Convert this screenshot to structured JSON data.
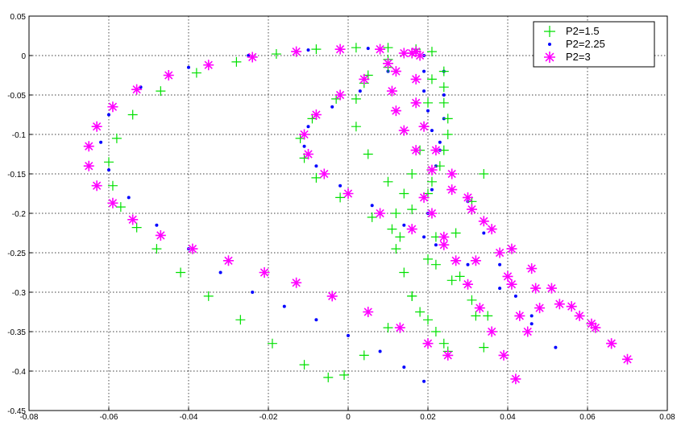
{
  "chart_data": {
    "type": "scatter",
    "title": "",
    "xlabel": "",
    "ylabel": "",
    "xlim": [
      -0.08,
      0.08
    ],
    "ylim": [
      -0.45,
      0.05
    ],
    "xticks": [
      "-0.08",
      "-0.06",
      "-0.04",
      "-0.02",
      "0",
      "0.02",
      "0.04",
      "0.06",
      "0.08"
    ],
    "yticks": [
      "0.05",
      "0",
      "-0.05",
      "-0.1",
      "-0.15",
      "-0.2",
      "-0.25",
      "-0.3",
      "-0.35",
      "-0.4",
      "-0.45"
    ],
    "grid": true,
    "legend_position": "top-right",
    "colors": {
      "p15": "#00e000",
      "p225": "#0000ff",
      "p3": "#ff00ff"
    },
    "series": [
      {
        "name": "P2=1.5",
        "marker": "plus",
        "color": "#00e000",
        "curves": [
          {
            "x": [
              0.017,
              0.01,
              0.002,
              -0.008,
              -0.018,
              -0.028,
              -0.038,
              -0.047,
              -0.054,
              -0.058,
              -0.06,
              -0.059,
              -0.057,
              -0.053,
              -0.048,
              -0.042,
              -0.035,
              -0.027,
              -0.019,
              -0.011,
              -0.005,
              -0.001,
              0.004,
              0.01,
              0.016,
              0.022,
              0.027,
              0.031,
              0.034
            ],
            "y": [
              0.008,
              0.01,
              0.01,
              0.008,
              0.002,
              -0.008,
              -0.022,
              -0.045,
              -0.075,
              -0.105,
              -0.135,
              -0.165,
              -0.192,
              -0.218,
              -0.245,
              -0.275,
              -0.305,
              -0.335,
              -0.365,
              -0.392,
              -0.408,
              -0.405,
              -0.38,
              -0.345,
              -0.305,
              -0.265,
              -0.225,
              -0.185,
              -0.15
            ]
          },
          {
            "x": [
              0.017,
              0.01,
              0.005,
              0.002,
              0.002,
              0.005,
              0.01,
              0.016,
              0.022,
              0.028,
              0.032,
              0.034
            ],
            "y": [
              0.005,
              -0.005,
              -0.025,
              -0.055,
              -0.09,
              -0.125,
              -0.16,
              -0.195,
              -0.23,
              -0.28,
              -0.33,
              -0.37
            ]
          },
          {
            "x": [
              0.017,
              0.01,
              0.004,
              -0.003,
              -0.009,
              -0.012,
              -0.011,
              -0.008,
              -0.002,
              0.006,
              0.013,
              0.02,
              0.026,
              0.031,
              0.035
            ],
            "y": [
              0.005,
              -0.015,
              -0.035,
              -0.055,
              -0.08,
              -0.105,
              -0.13,
              -0.155,
              -0.18,
              -0.205,
              -0.23,
              -0.258,
              -0.285,
              -0.31,
              -0.33
            ]
          },
          {
            "x": [
              0.021,
              0.021,
              0.02,
              0.019,
              0.018,
              0.016,
              0.014,
              0.012,
              0.011,
              0.012,
              0.014,
              0.016,
              0.018,
              0.02,
              0.022,
              0.024,
              0.025
            ],
            "y": [
              0.005,
              -0.03,
              -0.06,
              -0.09,
              -0.12,
              -0.15,
              -0.175,
              -0.2,
              -0.22,
              -0.245,
              -0.275,
              -0.305,
              -0.325,
              -0.335,
              -0.35,
              -0.365,
              -0.375
            ]
          },
          {
            "x": [
              0.024,
              0.024,
              0.024,
              0.025,
              0.025,
              0.024,
              0.023,
              0.021,
              0.02
            ],
            "y": [
              -0.02,
              -0.04,
              -0.06,
              -0.08,
              -0.1,
              -0.12,
              -0.14,
              -0.16,
              -0.175
            ]
          }
        ]
      },
      {
        "name": "P2=2.25",
        "marker": "dot",
        "color": "#0000ff",
        "curves": [
          {
            "x": [
              0.017,
              0.005,
              -0.01,
              -0.025,
              -0.04,
              -0.052,
              -0.06,
              -0.062,
              -0.06,
              -0.055,
              -0.048,
              -0.04,
              -0.032,
              -0.024,
              -0.016,
              -0.008,
              0.0,
              0.008,
              0.014,
              0.019
            ],
            "y": [
              0.007,
              0.009,
              0.007,
              0.0,
              -0.015,
              -0.04,
              -0.075,
              -0.11,
              -0.145,
              -0.18,
              -0.215,
              -0.245,
              -0.275,
              -0.3,
              -0.318,
              -0.335,
              -0.355,
              -0.375,
              -0.395,
              -0.413
            ]
          },
          {
            "x": [
              0.017,
              0.01,
              0.003,
              -0.004,
              -0.01,
              -0.011,
              -0.008,
              -0.002,
              0.006,
              0.014,
              0.022,
              0.03,
              0.038,
              0.046,
              0.052
            ],
            "y": [
              0.004,
              -0.02,
              -0.045,
              -0.065,
              -0.09,
              -0.115,
              -0.14,
              -0.165,
              -0.19,
              -0.215,
              -0.24,
              -0.265,
              -0.295,
              -0.33,
              -0.37
            ]
          },
          {
            "x": [
              0.019,
              0.019,
              0.019,
              0.02,
              0.021,
              0.023,
              0.026,
              0.03,
              0.034,
              0.038,
              0.042,
              0.046
            ],
            "y": [
              0.0,
              -0.02,
              -0.045,
              -0.07,
              -0.095,
              -0.12,
              -0.15,
              -0.185,
              -0.225,
              -0.265,
              -0.305,
              -0.34
            ]
          },
          {
            "x": [
              0.024,
              0.024,
              0.024,
              0.023,
              0.022,
              0.021,
              0.02,
              0.019
            ],
            "y": [
              -0.02,
              -0.05,
              -0.08,
              -0.11,
              -0.14,
              -0.17,
              -0.2,
              -0.23
            ]
          }
        ]
      },
      {
        "name": "P2=3",
        "marker": "star",
        "color": "#ff00ff",
        "curves": [
          {
            "x": [
              0.017,
              0.008,
              -0.002,
              -0.013,
              -0.024,
              -0.035,
              -0.045,
              -0.053,
              -0.059,
              -0.063,
              -0.065,
              -0.065,
              -0.063,
              -0.059,
              -0.054,
              -0.047,
              -0.039,
              -0.03,
              -0.021,
              -0.013,
              -0.004,
              0.005,
              0.013,
              0.02,
              0.025
            ],
            "y": [
              0.005,
              0.008,
              0.008,
              0.005,
              -0.002,
              -0.012,
              -0.025,
              -0.043,
              -0.065,
              -0.09,
              -0.115,
              -0.14,
              -0.165,
              -0.187,
              -0.208,
              -0.228,
              -0.245,
              -0.26,
              -0.275,
              -0.288,
              -0.305,
              -0.325,
              -0.345,
              -0.365,
              -0.38
            ]
          },
          {
            "x": [
              0.016,
              0.01,
              0.004,
              -0.002,
              -0.008,
              -0.011,
              -0.01,
              -0.006,
              0.0,
              0.008,
              0.016,
              0.024,
              0.032,
              0.04,
              0.047,
              0.053,
              0.058,
              0.062,
              0.066,
              0.07
            ],
            "y": [
              0.003,
              -0.01,
              -0.03,
              -0.05,
              -0.075,
              -0.1,
              -0.125,
              -0.15,
              -0.175,
              -0.2,
              -0.22,
              -0.24,
              -0.26,
              -0.28,
              -0.295,
              -0.315,
              -0.33,
              -0.345,
              -0.365,
              -0.385
            ]
          },
          {
            "x": [
              0.014,
              0.012,
              0.011,
              0.012,
              0.014,
              0.017,
              0.021,
              0.026,
              0.031,
              0.036,
              0.041,
              0.046,
              0.051,
              0.056,
              0.061,
              0.066
            ],
            "y": [
              0.003,
              -0.02,
              -0.045,
              -0.07,
              -0.095,
              -0.12,
              -0.145,
              -0.17,
              -0.195,
              -0.22,
              -0.245,
              -0.27,
              -0.295,
              -0.318,
              -0.34,
              -0.365
            ]
          },
          {
            "x": [
              0.018,
              0.017,
              0.017,
              0.019,
              0.022,
              0.026,
              0.03,
              0.034,
              0.038,
              0.041,
              0.043
            ],
            "y": [
              0.0,
              -0.03,
              -0.06,
              -0.09,
              -0.12,
              -0.15,
              -0.18,
              -0.21,
              -0.25,
              -0.29,
              -0.33
            ]
          },
          {
            "x": [
              0.019,
              0.021,
              0.024,
              0.027,
              0.03,
              0.033,
              0.036,
              0.039,
              0.042,
              0.045,
              0.048
            ],
            "y": [
              -0.18,
              -0.2,
              -0.23,
              -0.26,
              -0.29,
              -0.32,
              -0.35,
              -0.38,
              -0.41,
              -0.35,
              -0.32
            ]
          }
        ]
      }
    ]
  }
}
